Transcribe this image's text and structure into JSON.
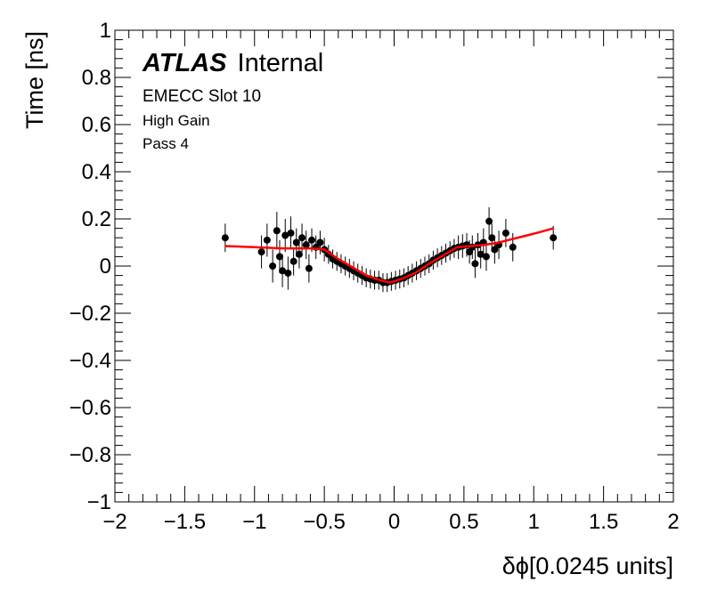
{
  "chart_data": {
    "type": "scatter",
    "title": "",
    "xlabel": "δϕ[0.0245 units]",
    "ylabel": "Time [ns]",
    "xlim": [
      -2,
      2
    ],
    "ylim": [
      -1,
      1
    ],
    "x_major_ticks": [
      -2,
      -1.5,
      -1,
      -0.5,
      0,
      0.5,
      1,
      1.5,
      2
    ],
    "x_tick_labels": [
      "−2",
      "−1.5",
      "−1",
      "−0.5",
      "0",
      "0.5",
      "1",
      "1.5",
      "2"
    ],
    "y_major_ticks": [
      -1,
      -0.8,
      -0.6,
      -0.4,
      -0.2,
      0,
      0.2,
      0.4,
      0.6,
      0.8,
      1
    ],
    "y_tick_labels": [
      "−1",
      "−0.8",
      "−0.6",
      "−0.4",
      "−0.2",
      "0",
      "0.2",
      "0.4",
      "0.6",
      "0.8",
      "1"
    ],
    "grid": false,
    "annotations": {
      "atlas_bold": "ATLAS",
      "atlas_rest": "Internal",
      "line1": "EMECC Slot 10",
      "line2": "High Gain",
      "line3": "Pass 4"
    },
    "series": [
      {
        "marker": "circle",
        "color": "#000000",
        "points": [
          {
            "x": -1.21,
            "y": 0.12,
            "err": 0.06
          },
          {
            "x": -0.95,
            "y": 0.06,
            "err": 0.07
          },
          {
            "x": -0.91,
            "y": 0.11,
            "err": 0.07
          },
          {
            "x": -0.87,
            "y": 0.0,
            "err": 0.07
          },
          {
            "x": -0.84,
            "y": 0.15,
            "err": 0.08
          },
          {
            "x": -0.82,
            "y": 0.04,
            "err": 0.07
          },
          {
            "x": -0.8,
            "y": -0.02,
            "err": 0.07
          },
          {
            "x": -0.78,
            "y": 0.13,
            "err": 0.07
          },
          {
            "x": -0.76,
            "y": -0.03,
            "err": 0.07
          },
          {
            "x": -0.74,
            "y": 0.14,
            "err": 0.07
          },
          {
            "x": -0.72,
            "y": 0.02,
            "err": 0.06
          },
          {
            "x": -0.7,
            "y": 0.1,
            "err": 0.06
          },
          {
            "x": -0.68,
            "y": 0.05,
            "err": 0.06
          },
          {
            "x": -0.66,
            "y": 0.12,
            "err": 0.06
          },
          {
            "x": -0.63,
            "y": 0.09,
            "err": 0.06
          },
          {
            "x": -0.61,
            "y": -0.01,
            "err": 0.06
          },
          {
            "x": -0.59,
            "y": 0.11,
            "err": 0.05
          },
          {
            "x": -0.56,
            "y": 0.08,
            "err": 0.05
          },
          {
            "x": -0.53,
            "y": 0.1,
            "err": 0.05
          },
          {
            "x": -0.5,
            "y": 0.07,
            "err": 0.05
          },
          {
            "x": -0.47,
            "y": 0.05,
            "err": 0.04
          },
          {
            "x": -0.44,
            "y": 0.03,
            "err": 0.04
          },
          {
            "x": -0.41,
            "y": 0.02,
            "err": 0.04
          },
          {
            "x": -0.38,
            "y": 0.01,
            "err": 0.04
          },
          {
            "x": -0.35,
            "y": 0.0,
            "err": 0.04
          },
          {
            "x": -0.32,
            "y": -0.01,
            "err": 0.04
          },
          {
            "x": -0.29,
            "y": -0.02,
            "err": 0.04
          },
          {
            "x": -0.26,
            "y": -0.03,
            "err": 0.04
          },
          {
            "x": -0.23,
            "y": -0.04,
            "err": 0.04
          },
          {
            "x": -0.2,
            "y": -0.05,
            "err": 0.04
          },
          {
            "x": -0.17,
            "y": -0.055,
            "err": 0.04
          },
          {
            "x": -0.14,
            "y": -0.06,
            "err": 0.04
          },
          {
            "x": -0.11,
            "y": -0.06,
            "err": 0.04
          },
          {
            "x": -0.08,
            "y": -0.07,
            "err": 0.04
          },
          {
            "x": -0.05,
            "y": -0.07,
            "err": 0.04
          },
          {
            "x": -0.02,
            "y": -0.065,
            "err": 0.04
          },
          {
            "x": 0.01,
            "y": -0.06,
            "err": 0.04
          },
          {
            "x": 0.04,
            "y": -0.055,
            "err": 0.04
          },
          {
            "x": 0.07,
            "y": -0.05,
            "err": 0.04
          },
          {
            "x": 0.1,
            "y": -0.04,
            "err": 0.04
          },
          {
            "x": 0.13,
            "y": -0.03,
            "err": 0.04
          },
          {
            "x": 0.16,
            "y": -0.02,
            "err": 0.04
          },
          {
            "x": 0.19,
            "y": -0.01,
            "err": 0.04
          },
          {
            "x": 0.22,
            "y": 0.0,
            "err": 0.04
          },
          {
            "x": 0.25,
            "y": 0.01,
            "err": 0.04
          },
          {
            "x": 0.28,
            "y": 0.025,
            "err": 0.04
          },
          {
            "x": 0.31,
            "y": 0.035,
            "err": 0.04
          },
          {
            "x": 0.34,
            "y": 0.045,
            "err": 0.04
          },
          {
            "x": 0.37,
            "y": 0.055,
            "err": 0.04
          },
          {
            "x": 0.4,
            "y": 0.065,
            "err": 0.04
          },
          {
            "x": 0.43,
            "y": 0.075,
            "err": 0.04
          },
          {
            "x": 0.46,
            "y": 0.08,
            "err": 0.05
          },
          {
            "x": 0.49,
            "y": 0.085,
            "err": 0.05
          },
          {
            "x": 0.52,
            "y": 0.09,
            "err": 0.05
          },
          {
            "x": 0.54,
            "y": 0.06,
            "err": 0.05
          },
          {
            "x": 0.56,
            "y": 0.08,
            "err": 0.05
          },
          {
            "x": 0.58,
            "y": 0.01,
            "err": 0.06
          },
          {
            "x": 0.6,
            "y": 0.09,
            "err": 0.05
          },
          {
            "x": 0.62,
            "y": 0.05,
            "err": 0.06
          },
          {
            "x": 0.64,
            "y": 0.1,
            "err": 0.06
          },
          {
            "x": 0.66,
            "y": 0.04,
            "err": 0.06
          },
          {
            "x": 0.68,
            "y": 0.19,
            "err": 0.06
          },
          {
            "x": 0.7,
            "y": 0.12,
            "err": 0.06
          },
          {
            "x": 0.72,
            "y": 0.07,
            "err": 0.06
          },
          {
            "x": 0.75,
            "y": 0.09,
            "err": 0.06
          },
          {
            "x": 0.8,
            "y": 0.14,
            "err": 0.06
          },
          {
            "x": 0.85,
            "y": 0.08,
            "err": 0.06
          },
          {
            "x": 1.14,
            "y": 0.12,
            "err": 0.05
          }
        ]
      }
    ],
    "fit": {
      "color": "#ff0000",
      "x": [
        -1.21,
        -1.0,
        -0.8,
        -0.6,
        -0.5,
        -0.4,
        -0.3,
        -0.2,
        -0.1,
        -0.03,
        0.05,
        0.15,
        0.25,
        0.35,
        0.45,
        0.55,
        0.65,
        0.75,
        0.85,
        0.95,
        1.05,
        1.14
      ],
      "y": [
        0.085,
        0.08,
        0.075,
        0.075,
        0.07,
        0.03,
        -0.005,
        -0.04,
        -0.06,
        -0.07,
        -0.055,
        -0.03,
        0.01,
        0.045,
        0.08,
        0.085,
        0.09,
        0.1,
        0.115,
        0.13,
        0.145,
        0.16
      ]
    }
  }
}
